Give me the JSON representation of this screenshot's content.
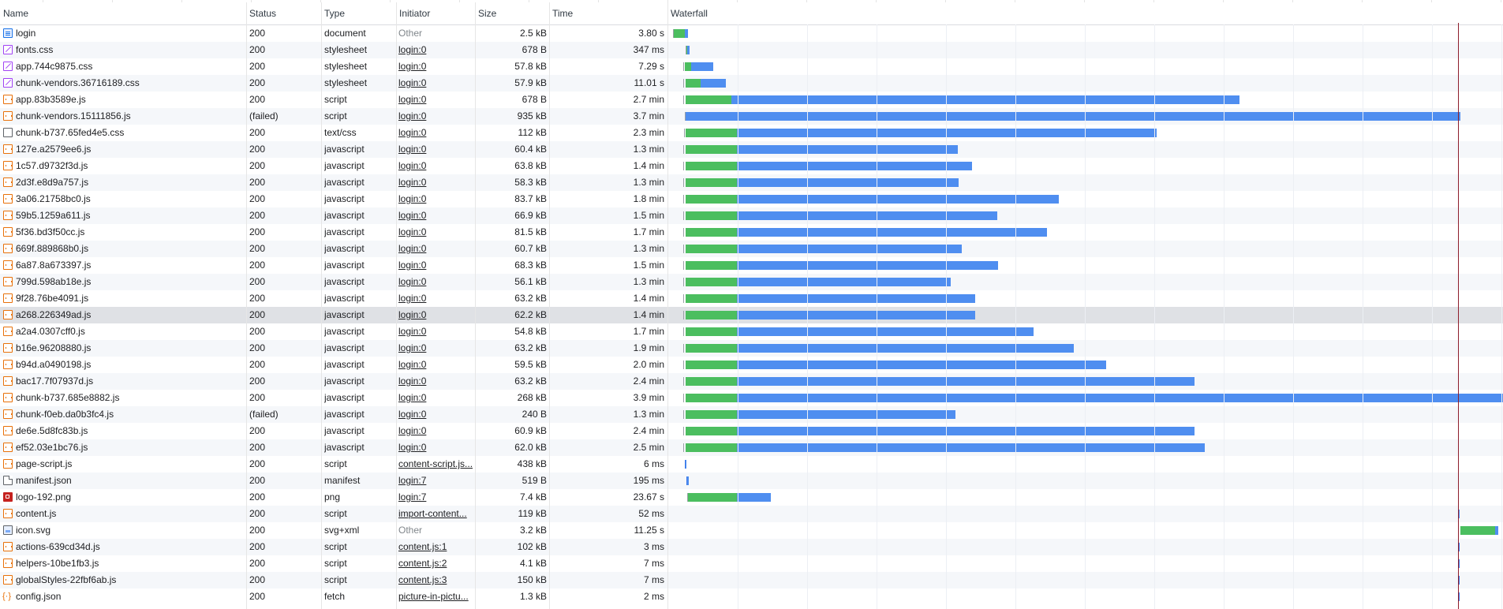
{
  "columns": {
    "name": "Name",
    "status": "Status",
    "type": "Type",
    "initiator": "Initiator",
    "size": "Size",
    "time": "Time",
    "waterfall": "Waterfall"
  },
  "requests": [
    {
      "name": "login",
      "status": "200",
      "type": "document",
      "initiator": "Other",
      "size": "2.5 kB",
      "time": "3.80 s",
      "icon": "document-icon"
    },
    {
      "name": "fonts.css",
      "status": "200",
      "type": "stylesheet",
      "initiator": "login:0",
      "size": "678 B",
      "time": "347 ms",
      "icon": "stylesheet-icon"
    },
    {
      "name": "app.744c9875.css",
      "status": "200",
      "type": "stylesheet",
      "initiator": "login:0",
      "size": "57.8 kB",
      "time": "7.29 s",
      "icon": "stylesheet-icon"
    },
    {
      "name": "chunk-vendors.36716189.css",
      "status": "200",
      "type": "stylesheet",
      "initiator": "login:0",
      "size": "57.9 kB",
      "time": "11.01 s",
      "icon": "stylesheet-icon"
    },
    {
      "name": "app.83b3589e.js",
      "status": "200",
      "type": "script",
      "initiator": "login:0",
      "size": "678 B",
      "time": "2.7 min",
      "icon": "script-icon"
    },
    {
      "name": "chunk-vendors.15111856.js",
      "status": "(failed)",
      "type": "script",
      "initiator": "login:0",
      "size": "935 kB",
      "time": "3.7 min",
      "icon": "script-icon"
    },
    {
      "name": "chunk-b737.65fed4e5.css",
      "status": "200",
      "type": "text/css",
      "initiator": "login:0",
      "size": "112 kB",
      "time": "2.3 min",
      "icon": "file-icon"
    },
    {
      "name": "127e.a2579ee6.js",
      "status": "200",
      "type": "javascript",
      "initiator": "login:0",
      "size": "60.4 kB",
      "time": "1.3 min",
      "icon": "script-icon"
    },
    {
      "name": "1c57.d9732f3d.js",
      "status": "200",
      "type": "javascript",
      "initiator": "login:0",
      "size": "63.8 kB",
      "time": "1.4 min",
      "icon": "script-icon"
    },
    {
      "name": "2d3f.e8d9a757.js",
      "status": "200",
      "type": "javascript",
      "initiator": "login:0",
      "size": "58.3 kB",
      "time": "1.3 min",
      "icon": "script-icon"
    },
    {
      "name": "3a06.21758bc0.js",
      "status": "200",
      "type": "javascript",
      "initiator": "login:0",
      "size": "83.7 kB",
      "time": "1.8 min",
      "icon": "script-icon"
    },
    {
      "name": "59b5.1259a611.js",
      "status": "200",
      "type": "javascript",
      "initiator": "login:0",
      "size": "66.9 kB",
      "time": "1.5 min",
      "icon": "script-icon"
    },
    {
      "name": "5f36.bd3f50cc.js",
      "status": "200",
      "type": "javascript",
      "initiator": "login:0",
      "size": "81.5 kB",
      "time": "1.7 min",
      "icon": "script-icon"
    },
    {
      "name": "669f.889868b0.js",
      "status": "200",
      "type": "javascript",
      "initiator": "login:0",
      "size": "60.7 kB",
      "time": "1.3 min",
      "icon": "script-icon"
    },
    {
      "name": "6a87.8a673397.js",
      "status": "200",
      "type": "javascript",
      "initiator": "login:0",
      "size": "68.3 kB",
      "time": "1.5 min",
      "icon": "script-icon"
    },
    {
      "name": "799d.598ab18e.js",
      "status": "200",
      "type": "javascript",
      "initiator": "login:0",
      "size": "56.1 kB",
      "time": "1.3 min",
      "icon": "script-icon"
    },
    {
      "name": "9f28.76be4091.js",
      "status": "200",
      "type": "javascript",
      "initiator": "login:0",
      "size": "63.2 kB",
      "time": "1.4 min",
      "icon": "script-icon"
    },
    {
      "name": "a268.226349ad.js",
      "status": "200",
      "type": "javascript",
      "initiator": "login:0",
      "size": "62.2 kB",
      "time": "1.4 min",
      "icon": "script-icon",
      "selected": true
    },
    {
      "name": "a2a4.0307cff0.js",
      "status": "200",
      "type": "javascript",
      "initiator": "login:0",
      "size": "54.8 kB",
      "time": "1.7 min",
      "icon": "script-icon"
    },
    {
      "name": "b16e.96208880.js",
      "status": "200",
      "type": "javascript",
      "initiator": "login:0",
      "size": "63.2 kB",
      "time": "1.9 min",
      "icon": "script-icon"
    },
    {
      "name": "b94d.a0490198.js",
      "status": "200",
      "type": "javascript",
      "initiator": "login:0",
      "size": "59.5 kB",
      "time": "2.0 min",
      "icon": "script-icon"
    },
    {
      "name": "bac17.7f07937d.js",
      "status": "200",
      "type": "javascript",
      "initiator": "login:0",
      "size": "63.2 kB",
      "time": "2.4 min",
      "icon": "script-icon"
    },
    {
      "name": "chunk-b737.685e8882.js",
      "status": "200",
      "type": "javascript",
      "initiator": "login:0",
      "size": "268 kB",
      "time": "3.9 min",
      "icon": "script-icon"
    },
    {
      "name": "chunk-f0eb.da0b3fc4.js",
      "status": "(failed)",
      "type": "javascript",
      "initiator": "login:0",
      "size": "240 B",
      "time": "1.3 min",
      "icon": "script-icon"
    },
    {
      "name": "de6e.5d8fc83b.js",
      "status": "200",
      "type": "javascript",
      "initiator": "login:0",
      "size": "60.9 kB",
      "time": "2.4 min",
      "icon": "script-icon"
    },
    {
      "name": "ef52.03e1bc76.js",
      "status": "200",
      "type": "javascript",
      "initiator": "login:0",
      "size": "62.0 kB",
      "time": "2.5 min",
      "icon": "script-icon"
    },
    {
      "name": "page-script.js",
      "status": "200",
      "type": "script",
      "initiator": "content-script.js...",
      "size": "438 kB",
      "time": "6 ms",
      "icon": "script-icon"
    },
    {
      "name": "manifest.json",
      "status": "200",
      "type": "manifest",
      "initiator": "login:7",
      "size": "519 B",
      "time": "195 ms",
      "icon": "manifest-icon"
    },
    {
      "name": "logo-192.png",
      "status": "200",
      "type": "png",
      "initiator": "login:7",
      "size": "7.4 kB",
      "time": "23.67 s",
      "icon": "image-icon"
    },
    {
      "name": "content.js",
      "status": "200",
      "type": "script",
      "initiator": "import-content...",
      "size": "119 kB",
      "time": "52 ms",
      "icon": "script-icon"
    },
    {
      "name": "icon.svg",
      "status": "200",
      "type": "svg+xml",
      "initiator": "Other",
      "size": "3.2 kB",
      "time": "11.25 s",
      "icon": "svg-icon"
    },
    {
      "name": "actions-639cd34d.js",
      "status": "200",
      "type": "script",
      "initiator": "content.js:1",
      "size": "102 kB",
      "time": "3 ms",
      "icon": "script-icon"
    },
    {
      "name": "helpers-10be1fb3.js",
      "status": "200",
      "type": "script",
      "initiator": "content.js:2",
      "size": "4.1 kB",
      "time": "7 ms",
      "icon": "script-icon"
    },
    {
      "name": "globalStyles-22fbf6ab.js",
      "status": "200",
      "type": "script",
      "initiator": "content.js:3",
      "size": "150 kB",
      "time": "7 ms",
      "icon": "script-icon"
    },
    {
      "name": "config.json",
      "status": "200",
      "type": "fetch",
      "initiator": "picture-in-pictu...",
      "size": "1.3 kB",
      "time": "2 ms",
      "icon": "fetch-icon"
    }
  ],
  "colors": {
    "waiting": "#4bbe5f",
    "download": "#4f8ef0",
    "load_marker": "#8e1d2b",
    "selected_row": "#dfe1e5"
  }
}
